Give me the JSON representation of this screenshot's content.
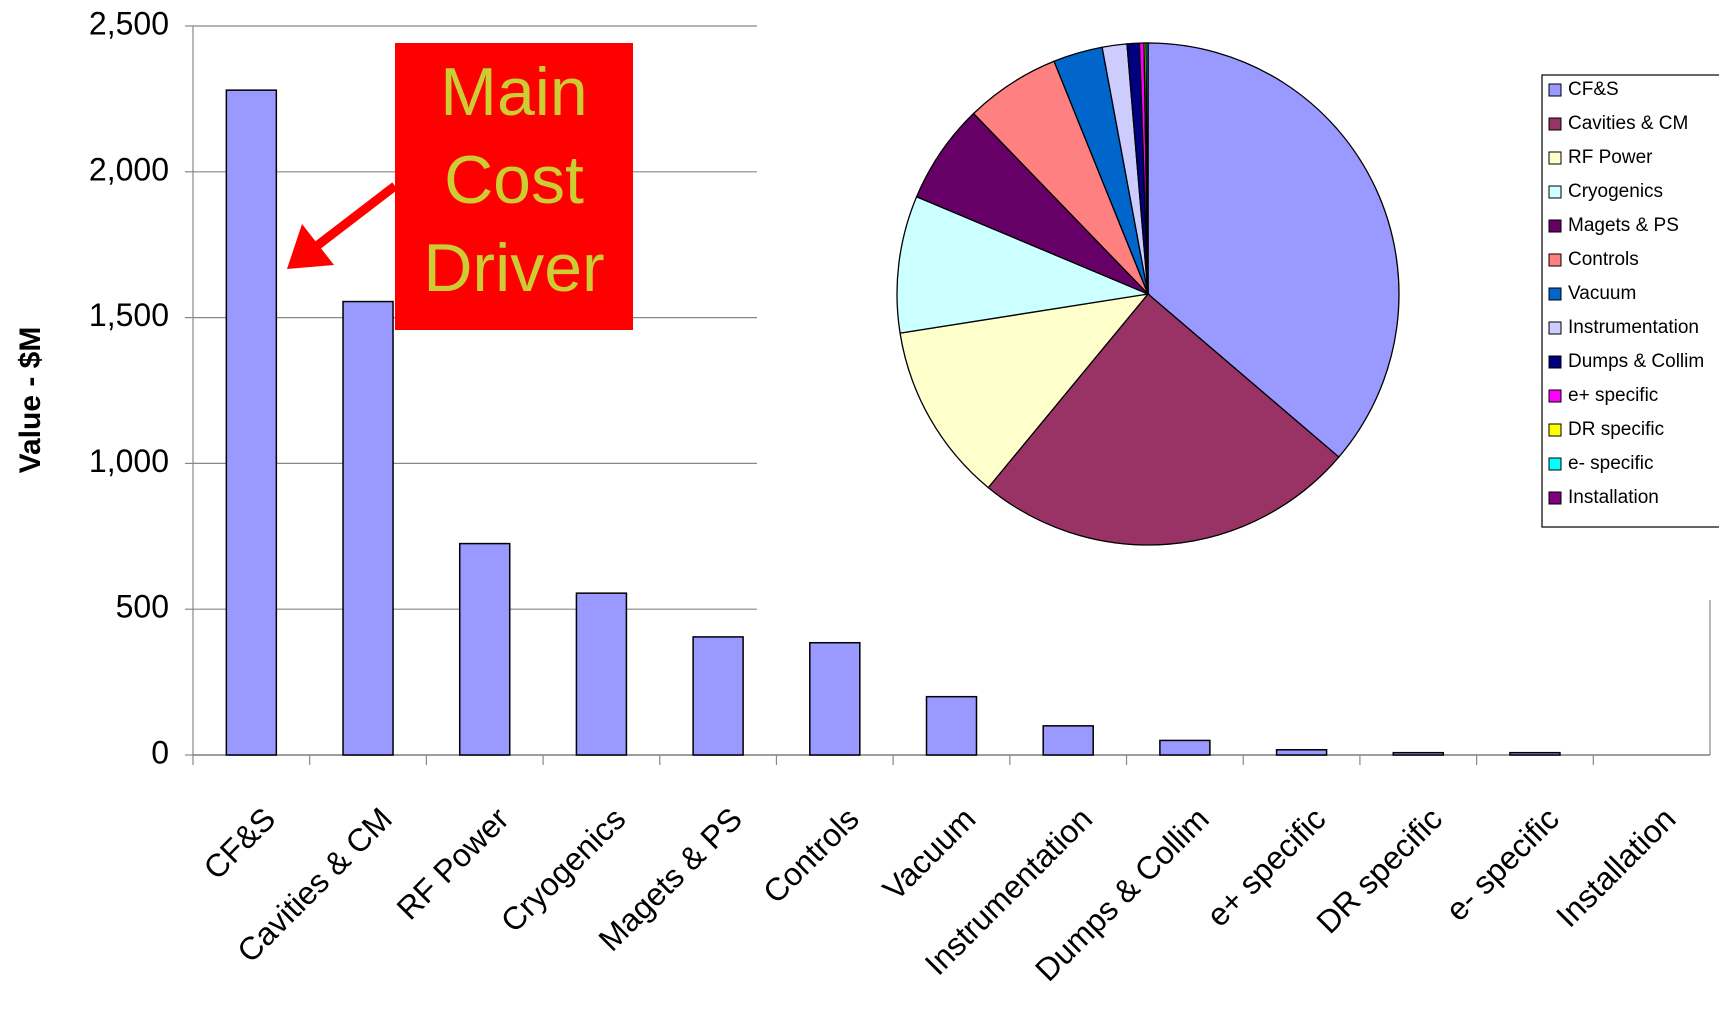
{
  "chart_data": [
    {
      "type": "bar",
      "y_label": "Value - $M",
      "annotation": [
        "Main",
        "Cost",
        "Driver"
      ],
      "categories": [
        "CF&S",
        "Cavities & CM",
        "RF Power",
        "Cryogenics",
        "Magets & PS",
        "Controls",
        "Vacuum",
        "Instrumentation",
        "Dumps & Collim",
        "e+ specific",
        "DR specific",
        "e- specific",
        "Installation"
      ],
      "values": [
        2280,
        1555,
        725,
        555,
        405,
        385,
        200,
        100,
        50,
        18,
        8,
        8,
        0
      ],
      "color": "#9999ff",
      "ylim": [
        0,
        2500
      ],
      "yticks": [
        0,
        500,
        {
          "value": 1000,
          "label": "1,000"
        },
        {
          "value": 1500,
          "label": "1,500"
        },
        {
          "value": 2000,
          "label": "2,000"
        },
        {
          "value": 2500,
          "label": "2,500"
        }
      ],
      "grid": true
    },
    {
      "type": "pie",
      "categories": [
        "CF&S",
        "Cavities & CM",
        "RF Power",
        "Cryogenics",
        "Magets & PS",
        "Controls",
        "Vacuum",
        "Instrumentation",
        "Dumps & Collim",
        "e+ specific",
        "DR specific",
        "e- specific",
        "Installation"
      ],
      "values": [
        2280,
        1555,
        725,
        555,
        405,
        385,
        200,
        100,
        50,
        18,
        8,
        8,
        0
      ],
      "colors": [
        "#9999ff",
        "#993366",
        "#ffffcc",
        "#ccffff",
        "#660066",
        "#ff8080",
        "#0066cc",
        "#ccccff",
        "#000080",
        "#ff00ff",
        "#ffff00",
        "#00ffff",
        "#800080"
      ],
      "legend": "right"
    }
  ]
}
